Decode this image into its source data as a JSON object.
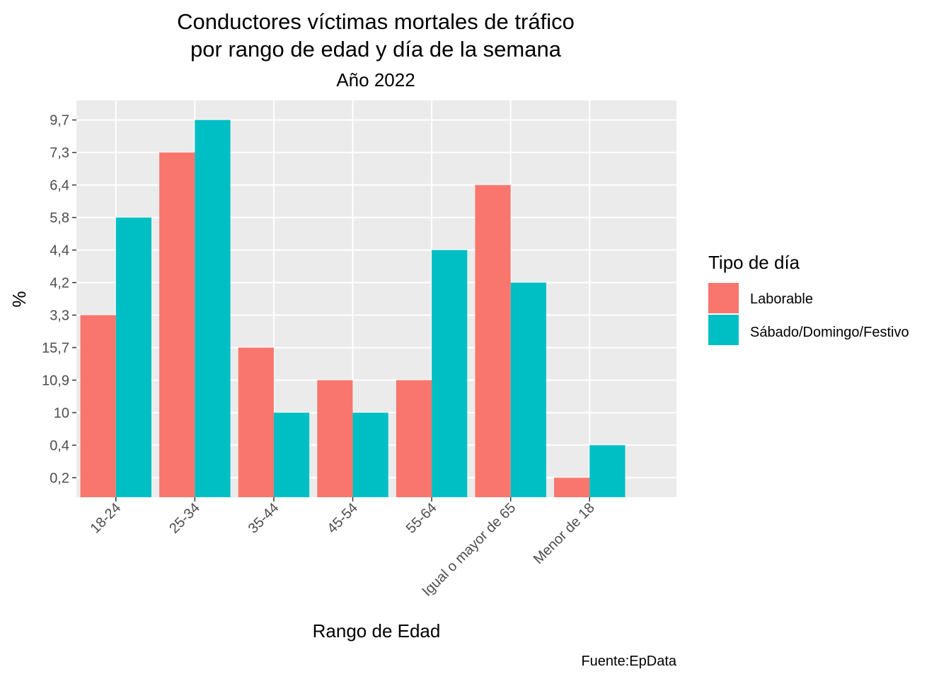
{
  "chart_data": {
    "type": "bar",
    "title_line1": "Conductores víctimas mortales de tráfico",
    "title_line2": "por rango de edad y día de la semana",
    "subtitle": "Año 2022",
    "xlabel": "Rango de Edad",
    "ylabel": "%",
    "caption": "Fuente:EpData",
    "categories": [
      "18-24",
      "25-34",
      "35-44",
      "45-54",
      "55-64",
      "Igual o mayor de 65",
      "Menor de 18"
    ],
    "y_levels": [
      "0,2",
      "0,4",
      "10",
      "10,9",
      "15,7",
      "3,3",
      "4,2",
      "4,4",
      "5,8",
      "6,4",
      "7,3",
      "9,7"
    ],
    "series": [
      {
        "name": "Laborable",
        "color": "#F8766D",
        "values": [
          "3,3",
          "7,3",
          "15,7",
          "10,9",
          "10,9",
          "6,4",
          "0,2"
        ]
      },
      {
        "name": "Sábado/Domingo/Festivo",
        "color": "#00BFC4",
        "values": [
          "5,8",
          "9,7",
          "10",
          "10",
          "4,4",
          "4,2",
          "0,4"
        ]
      }
    ],
    "legend": {
      "title": "Tipo de día",
      "position": "right"
    },
    "grid": true,
    "panel_color": "#EBEBEB",
    "grid_color": "#FFFFFF"
  }
}
